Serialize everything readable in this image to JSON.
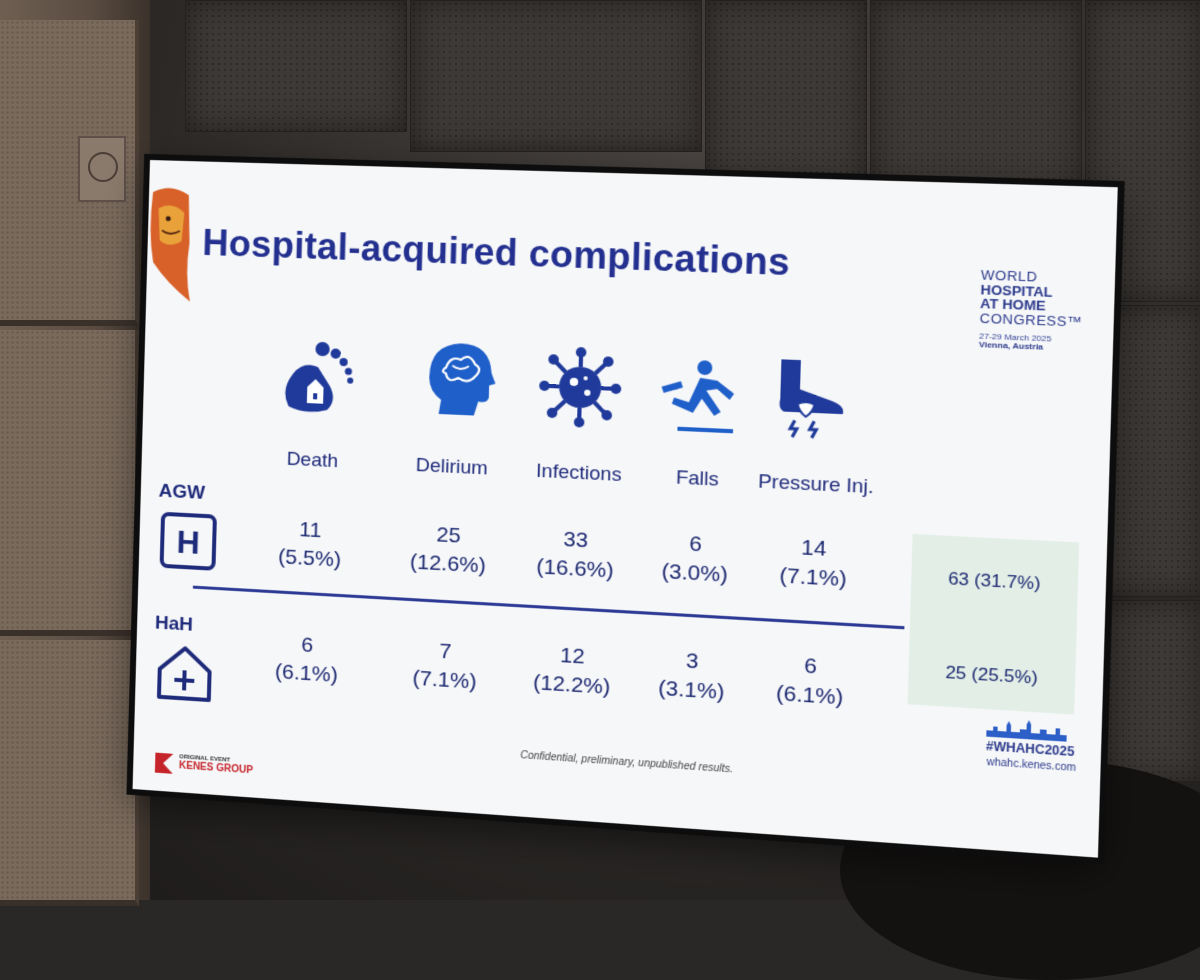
{
  "slide": {
    "title": "Hospital-acquired complications",
    "congress": {
      "line1": "WORLD",
      "line2": "HOSPITAL",
      "line3": "AT HOME",
      "line4": "CONGRESS™",
      "dates": "27-29 March 2025",
      "city": "Vienna, Austria"
    },
    "columns": [
      "Death",
      "Delirium",
      "Infections",
      "Falls",
      "Pressure Inj."
    ],
    "icons": [
      "foot-house-icon",
      "head-brain-icon",
      "virus-icon",
      "falling-person-icon",
      "foot-pressure-icon"
    ],
    "rows": [
      {
        "label": "AGW",
        "icon": "hospital-h-icon",
        "cells": [
          {
            "count": "11",
            "pct": "(5.5%)"
          },
          {
            "count": "25",
            "pct": "(12.6%)"
          },
          {
            "count": "33",
            "pct": "(16.6%)"
          },
          {
            "count": "6",
            "pct": "(3.0%)"
          },
          {
            "count": "14",
            "pct": "(7.1%)"
          }
        ],
        "total": "63 (31.7%)"
      },
      {
        "label": "HaH",
        "icon": "home-plus-icon",
        "cells": [
          {
            "count": "6",
            "pct": "(6.1%)"
          },
          {
            "count": "7",
            "pct": "(7.1%)"
          },
          {
            "count": "12",
            "pct": "(12.2%)"
          },
          {
            "count": "3",
            "pct": "(3.1%)"
          },
          {
            "count": "6",
            "pct": "(6.1%)"
          }
        ],
        "total": "25 (25.5%)"
      }
    ],
    "footnote": "Confidential, preliminary, unpublished results.",
    "hashtag": "#WHAHC2025",
    "website": "whahc.kenes.com",
    "organizer_small": "ORIGINAL EVENT",
    "organizer_big": "KENES GROUP",
    "colors": {
      "primary": "#23308f",
      "icon_blue": "#1f5fc9",
      "total_bg": "#e2eee6"
    }
  }
}
